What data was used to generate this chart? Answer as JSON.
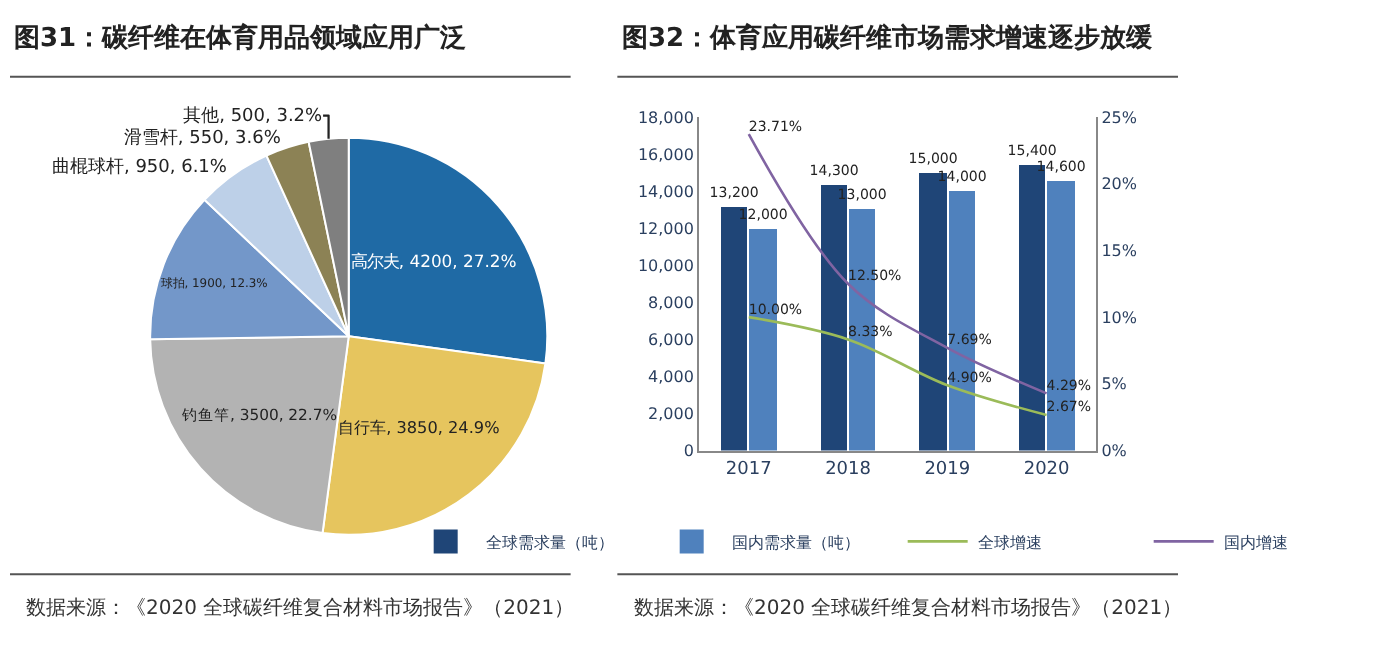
{
  "chart_data": [
    {
      "type": "pie",
      "title": "图31：碳纤维在体育用品领域应用广泛",
      "categories": [
        "高尔夫",
        "自行车",
        "钓鱼竿",
        "球拍",
        "曲棍球杆",
        "滑雪杆",
        "其他"
      ],
      "values": [
        4200,
        3850,
        3500,
        1900,
        950,
        550,
        500
      ],
      "value_labels": [
        "4200, 27.2%",
        "3850, 24.9%",
        "3500, 22.7%",
        "1900, 12.3%",
        "950, 6.1%",
        "550, 3.6%",
        "500, 3.2%"
      ],
      "colors": [
        "#1f6aa5",
        "#e6c55e",
        "#b3b3b3",
        "#7397c9",
        "#bdd0e8",
        "#8c8255",
        "#7f7f7f"
      ],
      "legend": false,
      "annotations": [
        "数据来源：《2020 全球碳纤维复合材料市场报告》（2021）"
      ]
    },
    {
      "type": "bar",
      "title": "图32：体育应用碳纤维市场需求增速逐步放缓",
      "categories": [
        "2017",
        "2018",
        "2019",
        "2020"
      ],
      "series": [
        {
          "name": "全球需求量（吨）",
          "color": "#1f4577",
          "values": [
            13200,
            14300,
            15000,
            15400
          ],
          "value_labels": [
            "13,200",
            "14,300",
            "15,000",
            "15,400"
          ]
        },
        {
          "name": "国内需求量（吨）",
          "color": "#4f81bd",
          "values": [
            12000,
            13000,
            14000,
            14600
          ],
          "value_labels": [
            "12,000",
            "13,000",
            "14,000",
            "14,600"
          ]
        },
        {
          "name": "全球增速",
          "type": "line",
          "axis": "y2",
          "color": "#9bbb59",
          "values": [
            10.0,
            8.33,
            4.9,
            2.67
          ],
          "value_labels": [
            "10.00%",
            "8.33%",
            "4.90%",
            "2.67%"
          ]
        },
        {
          "name": "国内增速",
          "type": "line",
          "axis": "y2",
          "color": "#8064a2",
          "values": [
            23.71,
            12.5,
            7.69,
            4.29
          ],
          "value_labels": [
            "23.71%",
            "12.50%",
            "7.69%",
            "4.29%"
          ]
        }
      ],
      "ylim": [
        0,
        18000
      ],
      "yticks": [
        0,
        {
          "value": 2000,
          "label": "2,000"
        },
        {
          "value": 4000,
          "label": "4,000"
        },
        {
          "value": 6000,
          "label": "6,000"
        },
        {
          "value": 8000,
          "label": "8,000"
        },
        {
          "value": 10000,
          "label": "10,000"
        },
        {
          "value": 12000,
          "label": "12,000"
        },
        {
          "value": 14000,
          "label": "14,000"
        },
        {
          "value": 16000,
          "label": "16,000"
        },
        {
          "value": 18000,
          "label": "18,000"
        }
      ],
      "y2lim": [
        0,
        25
      ],
      "y2ticks": [
        {
          "value": 0,
          "label": "0%"
        },
        {
          "value": 5,
          "label": "5%"
        },
        {
          "value": 10,
          "label": "10%"
        },
        {
          "value": 15,
          "label": "15%"
        },
        {
          "value": 20,
          "label": "20%"
        },
        {
          "value": 25,
          "label": "25%"
        }
      ],
      "legend": "bottom",
      "annotations": [
        "数据来源：《2020 全球碳纤维复合材料市场报告》（2021）"
      ]
    }
  ]
}
